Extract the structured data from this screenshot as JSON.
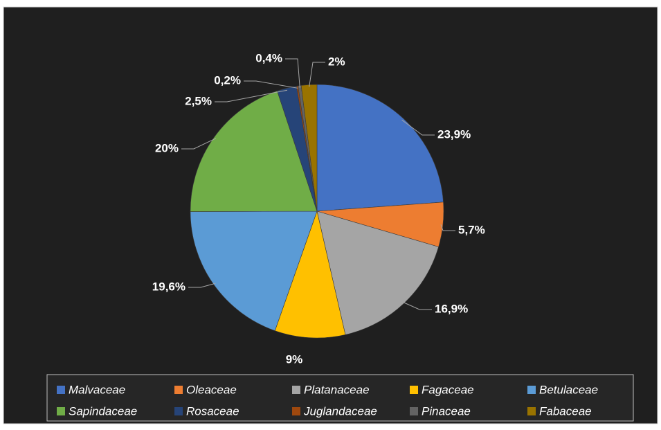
{
  "chart_data": {
    "type": "pie",
    "categories": [
      "Malvaceae",
      "Oleaceae",
      "Platanaceae",
      "Fagaceae",
      "Betulaceae",
      "Sapindaceae",
      "Rosaceae",
      "Juglandaceae",
      "Pinaceae",
      "Fabaceae"
    ],
    "values": [
      23.9,
      5.7,
      16.9,
      9,
      19.6,
      20,
      2.5,
      0.2,
      0.4,
      2
    ],
    "value_labels": [
      "23,9%",
      "5,7%",
      "16,9%",
      "9%",
      "19,6%",
      "20%",
      "2,5%",
      "0,2%",
      "0,4%",
      "2%"
    ],
    "colors": [
      "#4472c4",
      "#ed7d31",
      "#a5a5a5",
      "#ffc000",
      "#5b9bd5",
      "#70ad47",
      "#264478",
      "#9e480e",
      "#636363",
      "#997300"
    ],
    "legend": "bottom"
  }
}
